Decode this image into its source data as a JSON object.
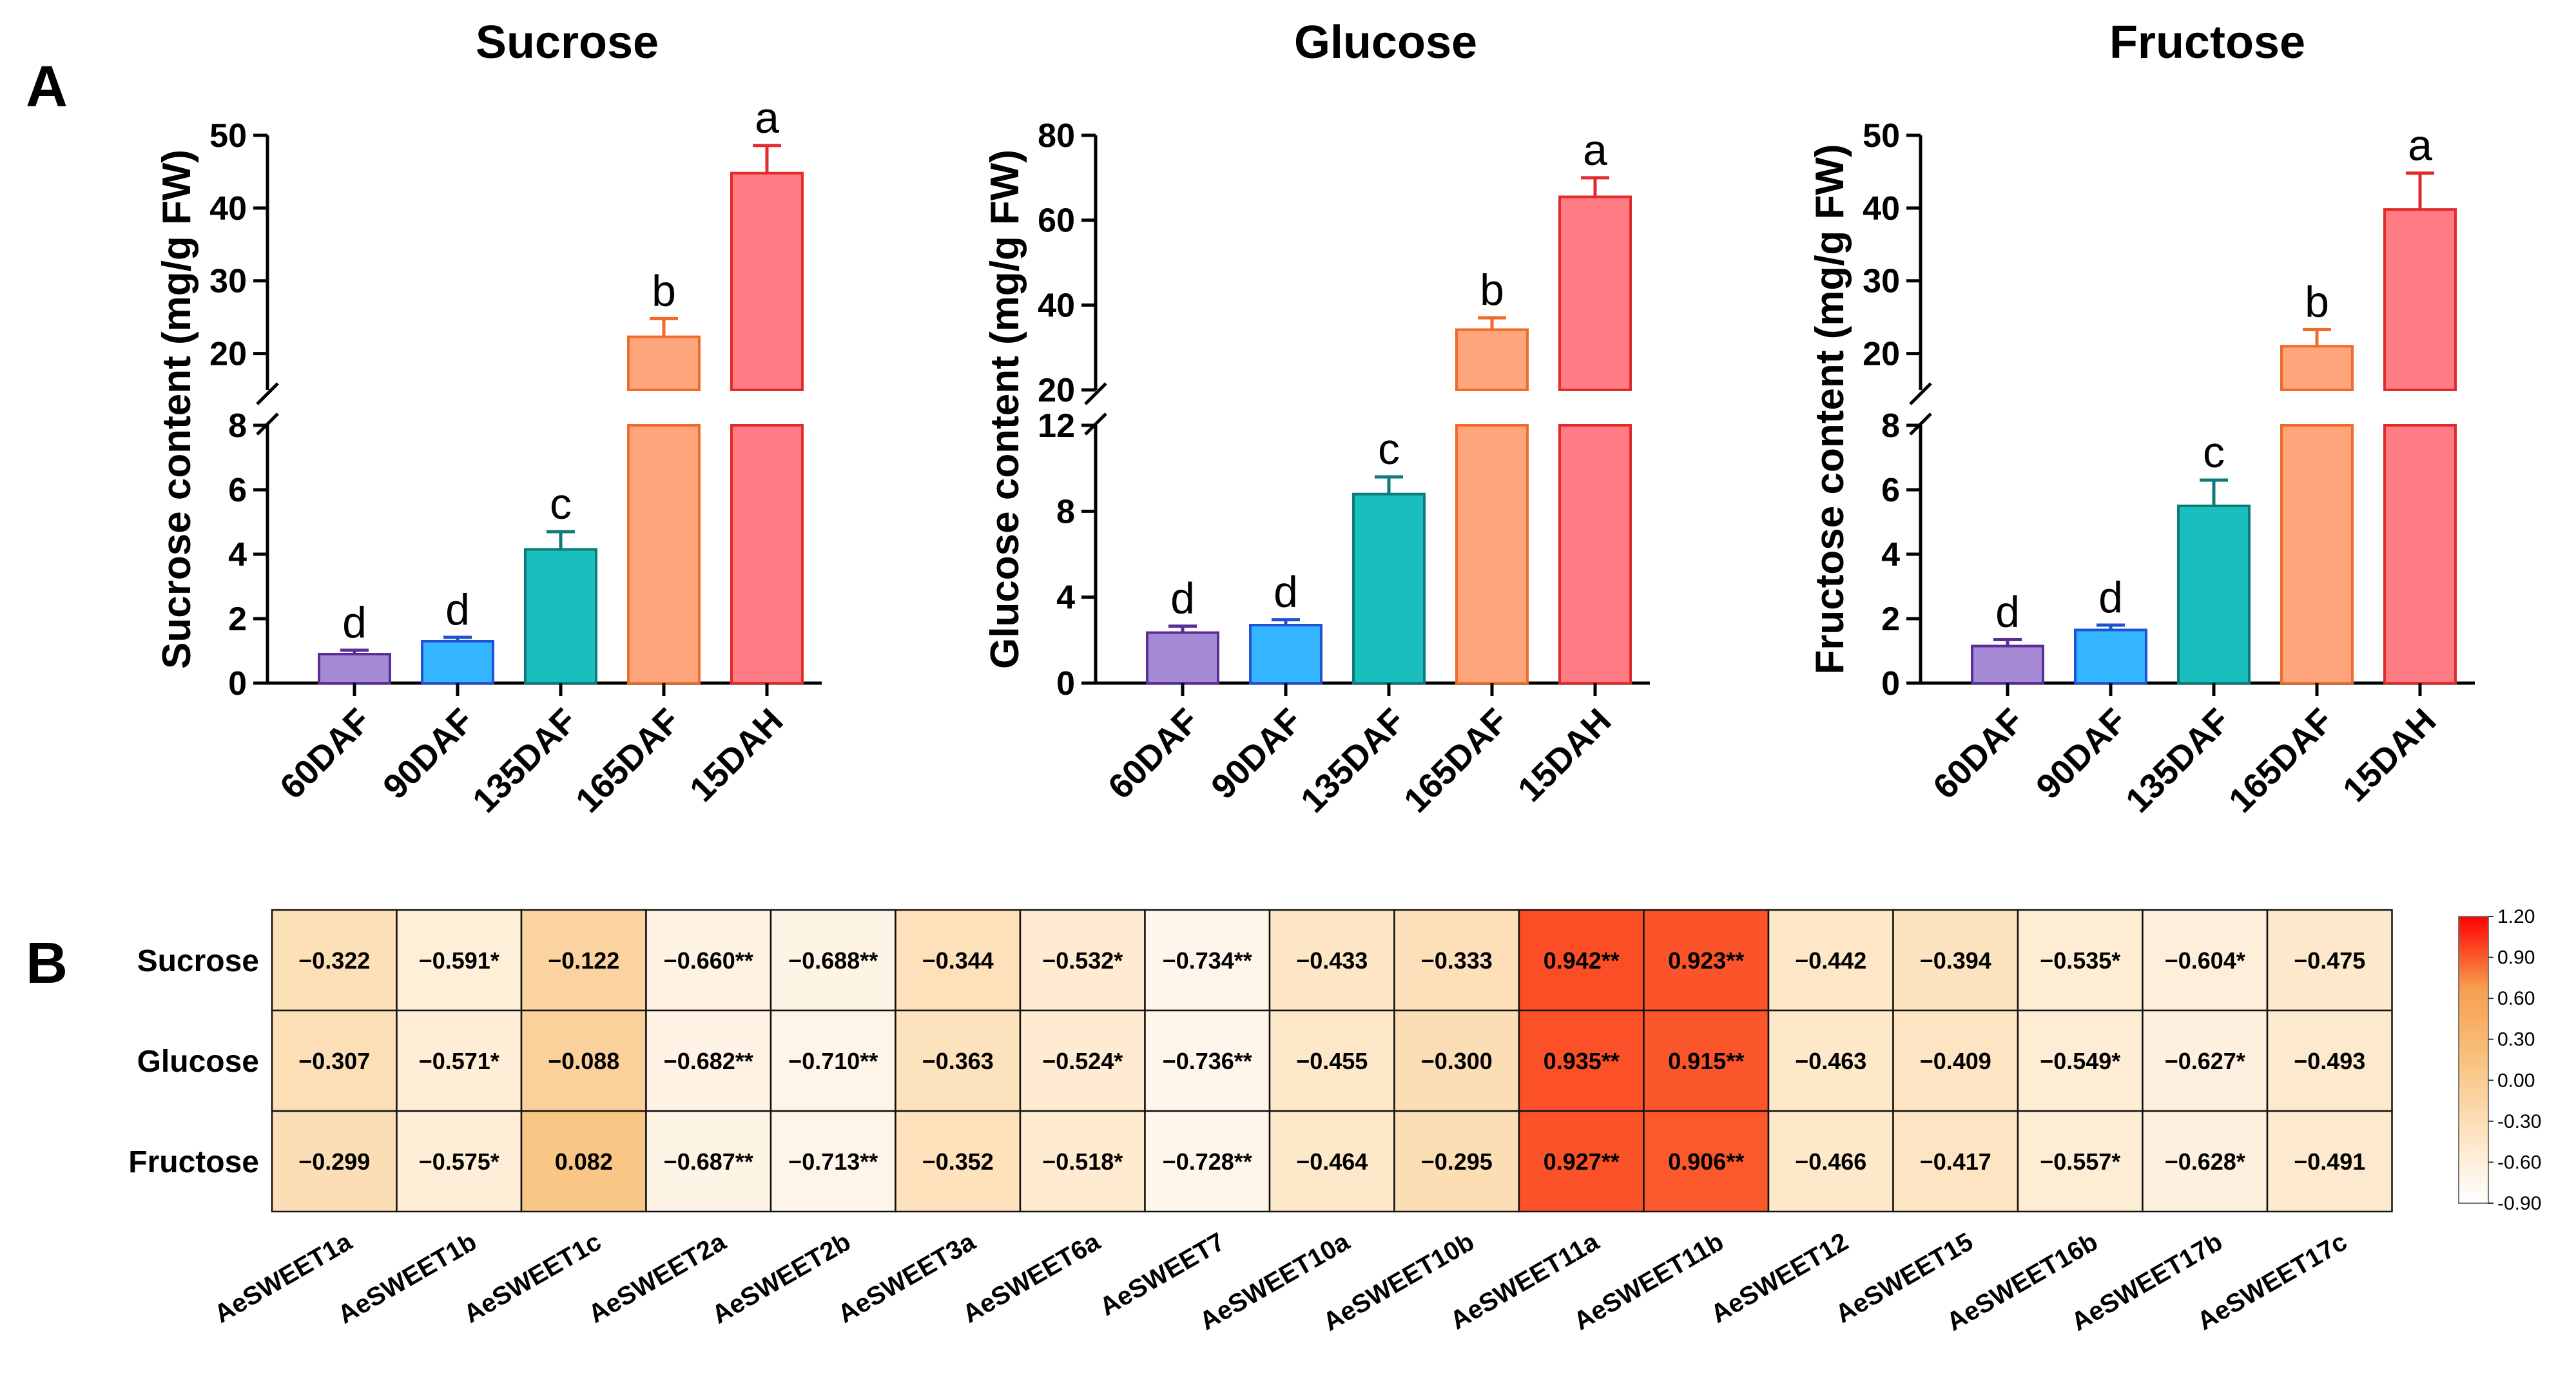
{
  "chart_data": [
    {
      "type": "bar",
      "panel_label": "A",
      "title": "Sucrose",
      "ylabel": "Sucrose content (mg/g FW)",
      "categories": [
        "60DAF",
        "90DAF",
        "135DAF",
        "165DAF",
        "15DAH"
      ],
      "values": [
        0.9,
        1.3,
        4.15,
        22.3,
        44.8
      ],
      "errors": [
        0.12,
        0.12,
        0.55,
        2.5,
        3.8
      ],
      "letters": [
        "d",
        "d",
        "c",
        "b",
        "a"
      ],
      "colors": [
        "#a58bd6",
        "#33b6ff",
        "#19bfbd",
        "#ffa57c",
        "#ff7c85"
      ],
      "edge_colors": [
        "#5b2d99",
        "#1f52d6",
        "#0e7a7a",
        "#ef6b2c",
        "#e22b2b"
      ],
      "ylim_lower": [
        0,
        8
      ],
      "yticks_lower": [
        "0",
        "2",
        "4",
        "6",
        "8"
      ],
      "ylim_upper": [
        15,
        50
      ],
      "yticks_upper": [
        "20",
        "30",
        "40",
        "50"
      ],
      "y_axis_break": true
    },
    {
      "type": "bar",
      "title": "Glucose",
      "ylabel": "Glucose content (mg/g FW)",
      "categories": [
        "60DAF",
        "90DAF",
        "135DAF",
        "165DAF",
        "15DAH"
      ],
      "values": [
        2.35,
        2.7,
        8.8,
        34.2,
        65.5
      ],
      "errors": [
        0.3,
        0.25,
        0.8,
        2.8,
        4.5
      ],
      "letters": [
        "d",
        "d",
        "c",
        "b",
        "a"
      ],
      "colors": [
        "#a58bd6",
        "#33b6ff",
        "#19bfbd",
        "#ffa57c",
        "#ff7c85"
      ],
      "edge_colors": [
        "#5b2d99",
        "#1f52d6",
        "#0e7a7a",
        "#ef6b2c",
        "#e22b2b"
      ],
      "ylim_lower": [
        0,
        12
      ],
      "yticks_lower": [
        "0",
        "4",
        "8",
        "12"
      ],
      "ylim_upper": [
        20,
        80
      ],
      "yticks_upper": [
        "20",
        "40",
        "60",
        "80"
      ],
      "y_axis_break": true
    },
    {
      "type": "bar",
      "title": "Fructose",
      "ylabel": "Fructose content (mg/g FW)",
      "categories": [
        "60DAF",
        "90DAF",
        "135DAF",
        "165DAF",
        "15DAH"
      ],
      "values": [
        1.15,
        1.65,
        5.5,
        21.0,
        39.8
      ],
      "errors": [
        0.2,
        0.15,
        0.8,
        2.3,
        5.0
      ],
      "letters": [
        "d",
        "d",
        "c",
        "b",
        "a"
      ],
      "colors": [
        "#a58bd6",
        "#33b6ff",
        "#19bfbd",
        "#ffa57c",
        "#ff7c85"
      ],
      "edge_colors": [
        "#5b2d99",
        "#1f52d6",
        "#0e7a7a",
        "#ef6b2c",
        "#e22b2b"
      ],
      "ylim_lower": [
        0,
        8
      ],
      "yticks_lower": [
        "0",
        "2",
        "4",
        "6",
        "8"
      ],
      "ylim_upper": [
        15,
        50
      ],
      "yticks_upper": [
        "20",
        "30",
        "40",
        "50"
      ],
      "y_axis_break": true
    },
    {
      "type": "heatmap",
      "panel_label": "B",
      "rows": [
        "Sucrose",
        "Glucose",
        "Fructose"
      ],
      "columns": [
        "AeSWEET1a",
        "AeSWEET1b",
        "AeSWEET1c",
        "AeSWEET2a",
        "AeSWEET2b",
        "AeSWEET3a",
        "AeSWEET6a",
        "AeSWEET7",
        "AeSWEET10a",
        "AeSWEET10b",
        "AeSWEET11a",
        "AeSWEET11b",
        "AeSWEET12",
        "AeSWEET15",
        "AeSWEET16b",
        "AeSWEET17b",
        "AeSWEET17c"
      ],
      "values": [
        [
          -0.322,
          -0.591,
          -0.122,
          -0.66,
          -0.688,
          -0.344,
          -0.532,
          -0.734,
          -0.433,
          -0.333,
          0.942,
          0.923,
          -0.442,
          -0.394,
          -0.535,
          -0.604,
          -0.475
        ],
        [
          -0.307,
          -0.571,
          -0.088,
          -0.682,
          -0.71,
          -0.363,
          -0.524,
          -0.736,
          -0.455,
          -0.3,
          0.935,
          0.915,
          -0.463,
          -0.409,
          -0.549,
          -0.627,
          -0.493
        ],
        [
          -0.299,
          -0.575,
          0.082,
          -0.687,
          -0.713,
          -0.352,
          -0.518,
          -0.728,
          -0.464,
          -0.295,
          0.927,
          0.906,
          -0.466,
          -0.417,
          -0.557,
          -0.628,
          -0.491
        ]
      ],
      "labels": [
        [
          "−0.322",
          "−0.591*",
          "−0.122",
          "−0.660**",
          "−0.688**",
          "−0.344",
          "−0.532*",
          "−0.734**",
          "−0.433",
          "−0.333",
          "0.942**",
          "0.923**",
          "−0.442",
          "−0.394",
          "−0.535*",
          "−0.604*",
          "−0.475"
        ],
        [
          "−0.307",
          "−0.571*",
          "−0.088",
          "−0.682**",
          "−0.710**",
          "−0.363",
          "−0.524*",
          "−0.736**",
          "−0.455",
          "−0.300",
          "0.935**",
          "0.915**",
          "−0.463",
          "−0.409",
          "−0.549*",
          "−0.627*",
          "−0.493"
        ],
        [
          "−0.299",
          "−0.575*",
          "0.082",
          "−0.687**",
          "−0.713**",
          "−0.352",
          "−0.518*",
          "−0.728**",
          "−0.464",
          "−0.295",
          "0.927**",
          "0.906**",
          "−0.466",
          "−0.417",
          "−0.557*",
          "−0.628*",
          "−0.491"
        ]
      ],
      "colorbar": {
        "min": -0.9,
        "max": 1.2,
        "ticks": [
          "1.20",
          "0.90",
          "0.60",
          "0.30",
          "0.00",
          "-0.30",
          "-0.60",
          "-0.90"
        ],
        "colors": [
          "#ffffff",
          "#fde3bf",
          "#f8c27e",
          "#f79e4f",
          "#ff0000"
        ]
      }
    }
  ]
}
